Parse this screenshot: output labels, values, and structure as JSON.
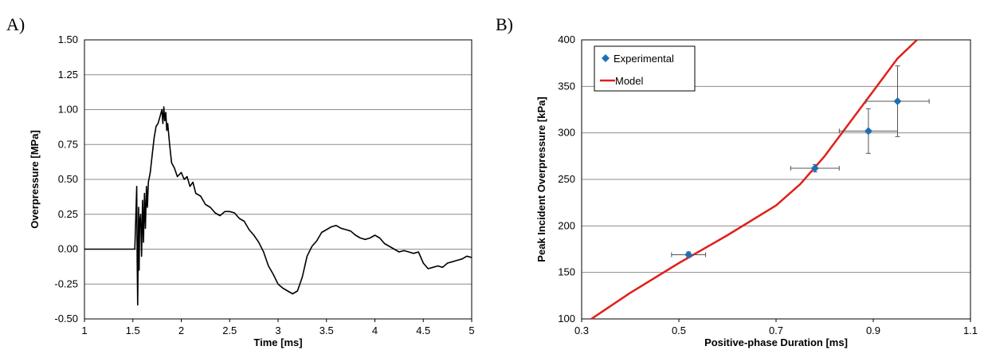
{
  "panels": {
    "a_label": "A)",
    "b_label": "B)"
  },
  "colors": {
    "trace": "#000000",
    "marker": "#1f6fb5",
    "model": "#e0201b",
    "grid": "#8c8c8c",
    "errorbar": "#555555"
  },
  "chart_data": [
    {
      "type": "line",
      "title": "",
      "xlabel": "Time [ms]",
      "ylabel": "Overpressure [MPa]",
      "xlim": [
        1,
        5
      ],
      "ylim": [
        -0.5,
        1.5
      ],
      "xticks": [
        "1",
        "1.5",
        "2",
        "2.5",
        "3",
        "3.5",
        "4",
        "4.5",
        "5"
      ],
      "yticks": [
        "-0.50",
        "-0.25",
        "0.00",
        "0.25",
        "0.50",
        "0.75",
        "1.00",
        "1.25",
        "1.50"
      ],
      "grid": "horizontal",
      "series": [
        {
          "x": [
            1.0,
            1.52,
            1.54,
            1.545,
            1.55,
            1.56,
            1.565,
            1.57,
            1.58,
            1.59,
            1.6,
            1.61,
            1.62,
            1.63,
            1.64,
            1.65,
            1.66,
            1.68,
            1.7,
            1.72,
            1.74,
            1.76,
            1.78,
            1.8,
            1.81,
            1.82,
            1.83,
            1.84,
            1.85,
            1.86,
            1.88,
            1.9,
            1.93,
            1.96,
            2.0,
            2.03,
            2.06,
            2.09,
            2.12,
            2.15,
            2.2,
            2.25,
            2.3,
            2.35,
            2.4,
            2.45,
            2.5,
            2.55,
            2.6,
            2.65,
            2.7,
            2.75,
            2.8,
            2.85,
            2.9,
            2.95,
            3.0,
            3.05,
            3.1,
            3.15,
            3.2,
            3.25,
            3.3,
            3.35,
            3.4,
            3.45,
            3.5,
            3.55,
            3.6,
            3.65,
            3.7,
            3.75,
            3.8,
            3.85,
            3.9,
            3.95,
            4.0,
            4.05,
            4.1,
            4.15,
            4.2,
            4.25,
            4.3,
            4.35,
            4.4,
            4.45,
            4.5,
            4.55,
            4.6,
            4.65,
            4.7,
            4.75,
            4.8,
            4.85,
            4.9,
            4.95,
            5.0
          ],
          "y": [
            0.0,
            0.0,
            0.45,
            -0.1,
            -0.4,
            0.3,
            -0.15,
            0.2,
            0.25,
            -0.05,
            0.35,
            0.05,
            0.4,
            0.15,
            0.45,
            0.3,
            0.48,
            0.55,
            0.68,
            0.8,
            0.88,
            0.9,
            0.95,
            1.0,
            0.9,
            1.02,
            0.92,
            0.98,
            0.85,
            0.9,
            0.75,
            0.62,
            0.58,
            0.52,
            0.55,
            0.5,
            0.52,
            0.45,
            0.48,
            0.4,
            0.38,
            0.32,
            0.3,
            0.26,
            0.24,
            0.27,
            0.27,
            0.26,
            0.22,
            0.2,
            0.14,
            0.1,
            0.05,
            -0.02,
            -0.12,
            -0.18,
            -0.25,
            -0.28,
            -0.3,
            -0.32,
            -0.3,
            -0.2,
            -0.05,
            0.02,
            0.06,
            0.12,
            0.14,
            0.16,
            0.17,
            0.15,
            0.14,
            0.13,
            0.1,
            0.08,
            0.07,
            0.08,
            0.1,
            0.08,
            0.04,
            0.02,
            0.0,
            -0.02,
            -0.01,
            -0.02,
            -0.03,
            -0.02,
            -0.1,
            -0.14,
            -0.13,
            -0.12,
            -0.13,
            -0.1,
            -0.09,
            -0.08,
            -0.07,
            -0.05,
            -0.06
          ]
        }
      ]
    },
    {
      "type": "scatter",
      "title": "",
      "xlabel": "Positive-phase Duration [ms]",
      "ylabel": "Peak Incident Overpressure [kPa]",
      "xlim": [
        0.3,
        1.1
      ],
      "ylim": [
        100,
        400
      ],
      "xticks": [
        "0.3",
        "0.5",
        "0.7",
        "0.9",
        "1.1"
      ],
      "yticks": [
        "100",
        "150",
        "200",
        "250",
        "300",
        "350",
        "400"
      ],
      "grid": "horizontal",
      "legend": {
        "position": "top-left",
        "items": [
          "Experimental",
          "Model"
        ]
      },
      "series": [
        {
          "name": "Experimental",
          "type": "scatter",
          "points": [
            {
              "x": 0.52,
              "y": 169,
              "x_err": 0.035,
              "y_err": 3
            },
            {
              "x": 0.78,
              "y": 262,
              "x_err": 0.05,
              "y_err": 4
            },
            {
              "x": 0.89,
              "y": 302,
              "x_err": 0.06,
              "y_err": 24
            },
            {
              "x": 0.95,
              "y": 334,
              "x_err": 0.065,
              "y_err": 38
            }
          ]
        },
        {
          "name": "Model",
          "type": "line",
          "x": [
            0.32,
            0.4,
            0.5,
            0.6,
            0.7,
            0.75,
            0.8,
            0.85,
            0.9,
            0.95,
            0.99
          ],
          "y": [
            100,
            128,
            160,
            190,
            222,
            245,
            275,
            310,
            345,
            380,
            403
          ]
        }
      ]
    }
  ]
}
